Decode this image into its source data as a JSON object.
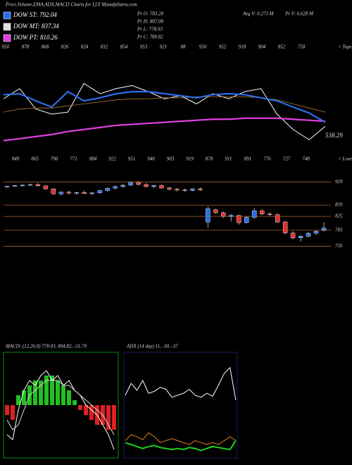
{
  "header": {
    "title": "Price,Volume,EMA,ADX,MACD Charts for LLY MunafaSutra.com",
    "legend": [
      {
        "label": "DOW ST: 792.04",
        "color": "#2a6ee8"
      },
      {
        "label": "DOW MT: 837.34",
        "color": "#dddddd"
      },
      {
        "label": "DOW PT: 810.26",
        "color": "#e040e0"
      }
    ],
    "stats": [
      "Pr O: 783.20",
      "Pr H: 807.00",
      "Pr L: 778.93",
      "Pr C: 789.82"
    ],
    "volume": [
      "Avg V: 0.273 M",
      "Pr V: 6.628 M"
    ]
  },
  "chart_data": [
    {
      "type": "line",
      "ylim": [
        0,
        100
      ],
      "tops": [
        "950",
        "878",
        "868",
        "826",
        "824",
        "832",
        "854",
        "953",
        "921",
        "88",
        "950",
        "952",
        "918",
        "904",
        "852",
        "758"
      ],
      "lows": [
        "849",
        "865",
        "790",
        "771",
        "884",
        "922",
        "951",
        "940",
        "903",
        "919",
        "878",
        "911",
        "891",
        "776",
        "727",
        "748"
      ],
      "tops_label": "< Tops",
      "lows_label": "< Lows",
      "annotation": "538.29",
      "series": [
        {
          "name": "Price",
          "color": "#ffffff",
          "values": [
            55,
            65,
            45,
            40,
            42,
            70,
            60,
            65,
            68,
            62,
            55,
            58,
            50,
            60,
            55,
            62,
            65,
            40,
            25,
            15,
            28
          ]
        },
        {
          "name": "DOW MT",
          "color": "#b07a30",
          "values": [
            42,
            45,
            46,
            46,
            48,
            50,
            52,
            54,
            55,
            55,
            56,
            56,
            57,
            57,
            57,
            57,
            56,
            54,
            50,
            46,
            42
          ]
        },
        {
          "name": "DOW PT",
          "color": "#e040e0",
          "values": [
            14,
            16,
            18,
            20,
            23,
            25,
            27,
            29,
            30,
            31,
            32,
            33,
            34,
            35,
            35,
            36,
            36,
            36,
            35,
            34,
            33
          ]
        },
        {
          "name": "DOW ST",
          "color": "#2a6ee8",
          "values": [
            59,
            60,
            53,
            47,
            62,
            53,
            56,
            60,
            62,
            62,
            60,
            58,
            56,
            59,
            60,
            59,
            56,
            53,
            47,
            41,
            32
          ]
        }
      ]
    },
    {
      "type": "candlestick",
      "ylim": [
        670,
        957
      ],
      "yticks": [
        929,
        859,
        825,
        783,
        735
      ],
      "up_color": "#2a6ee8",
      "down_color": "#e03030",
      "line_color": "#b0602a",
      "open": [
        915,
        916,
        918,
        919,
        921,
        917,
        908,
        893,
        898,
        895,
        897,
        894,
        896,
        903,
        910,
        915,
        919,
        927,
        921,
        915,
        918,
        911,
        907,
        905,
        903,
        908,
        808,
        845,
        836,
        825,
        828,
        806,
        822,
        842,
        832,
        830,
        808,
        775,
        760,
        765,
        774,
        783.2
      ],
      "high": [
        918,
        920,
        922,
        924,
        925,
        919,
        910,
        900,
        902,
        899,
        903,
        898,
        905,
        912,
        918,
        922,
        930,
        931,
        925,
        920,
        921,
        914,
        910,
        909,
        910,
        912,
        855,
        848,
        840,
        832,
        830,
        825,
        850,
        846,
        838,
        834,
        812,
        780,
        768,
        778,
        784,
        807
      ],
      "low": [
        912,
        914,
        916,
        917,
        915,
        905,
        890,
        888,
        892,
        890,
        893,
        889,
        894,
        900,
        906,
        911,
        916,
        918,
        912,
        910,
        908,
        903,
        900,
        899,
        901,
        902,
        790,
        832,
        820,
        810,
        800,
        804,
        818,
        828,
        825,
        805,
        770,
        755,
        748,
        762,
        770,
        778.93
      ],
      "close": [
        916,
        918,
        919,
        921,
        917,
        908,
        893,
        898,
        895,
        897,
        894,
        896,
        903,
        910,
        915,
        919,
        927,
        921,
        915,
        918,
        911,
        907,
        905,
        903,
        908,
        905,
        848,
        836,
        825,
        828,
        806,
        822,
        842,
        832,
        830,
        808,
        775,
        760,
        765,
        774,
        780,
        789.82
      ]
    },
    {
      "type": "macd",
      "title": "MACD: (12,26,9) 778.03, 804.82, -31.79",
      "ylim": [
        -10,
        10
      ],
      "histogram": [
        -2,
        -3,
        2,
        3,
        4,
        5,
        5,
        6,
        6,
        5,
        4,
        3,
        1,
        -1,
        -2,
        -3,
        -4,
        -4,
        -5,
        -5
      ],
      "series": [
        {
          "name": "MACD",
          "color": "#ffffff",
          "values": [
            -6,
            -7,
            -1,
            3,
            5,
            4,
            6,
            7,
            5,
            6,
            4,
            5,
            3,
            2,
            0,
            -1,
            -2,
            -4,
            -6,
            -9
          ]
        },
        {
          "name": "Signal",
          "color": "#dddddd",
          "values": [
            -3,
            -5,
            -4,
            -1,
            2,
            3,
            4,
            5,
            5,
            5,
            4,
            4,
            3,
            2,
            1,
            0,
            -1,
            -2,
            -4,
            -6
          ]
        }
      ]
    },
    {
      "type": "adx",
      "title": "ADX (14 day) 11, -30, -37",
      "ylim": [
        0,
        100
      ],
      "series": [
        {
          "name": "+DI",
          "color": "#ffffff",
          "values": [
            60,
            72,
            65,
            75,
            62,
            64,
            68,
            66,
            58,
            60,
            62,
            66,
            60,
            58,
            62,
            59,
            70,
            82,
            88,
            55
          ]
        },
        {
          "name": "-DI",
          "color": "#e08020",
          "values": [
            14,
            20,
            18,
            15,
            22,
            18,
            12,
            14,
            16,
            14,
            12,
            10,
            14,
            12,
            10,
            12,
            10,
            14,
            18,
            14
          ]
        },
        {
          "name": "ADX",
          "color": "#20d020",
          "values": [
            12,
            10,
            8,
            6,
            8,
            9,
            7,
            6,
            5,
            6,
            5,
            7,
            6,
            4,
            6,
            8,
            7,
            6,
            5,
            14
          ]
        }
      ]
    }
  ]
}
